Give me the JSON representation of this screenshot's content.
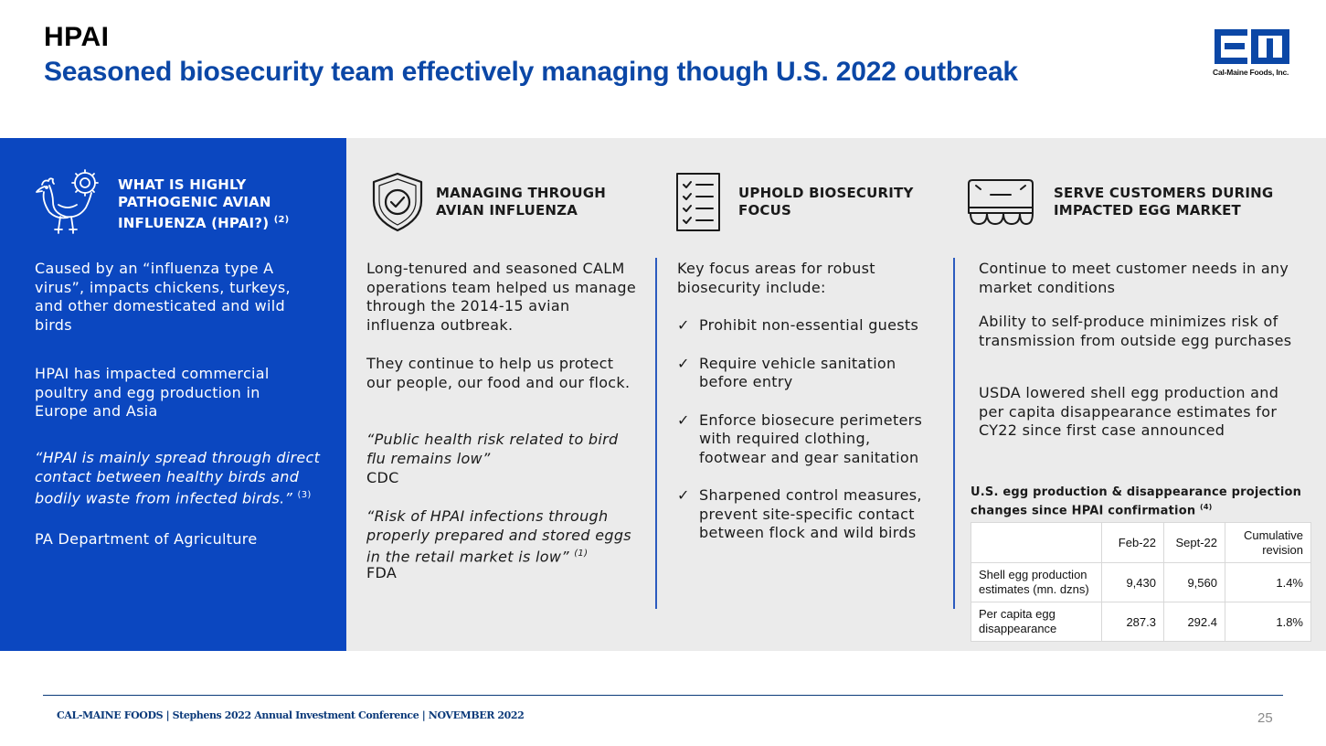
{
  "header": {
    "title": "HPAI",
    "subtitle": "Seasoned biosecurity team effectively managing though U.S. 2022 outbreak",
    "logo_text": "Cal-Maine Foods, Inc."
  },
  "col1": {
    "icon": "chicken-virus-icon",
    "heading": "WHAT IS HIGHLY PATHOGENIC AVIAN INFLUENZA (HPAI?)",
    "heading_note": "(2)",
    "p1": "Caused by an “influenza type A virus”, impacts chickens, turkeys, and other domesticated and wild birds",
    "p2": "HPAI has impacted commercial poultry and egg production in Europe and Asia",
    "quote": "“HPAI is mainly spread through direct contact between healthy birds and bodily waste from infected birds.”",
    "quote_note": "(3)",
    "source": "PA Department of Agriculture"
  },
  "col2": {
    "icon": "shield-check-icon",
    "heading": "MANAGING THROUGH AVIAN INFLUENZA",
    "p1": "Long-tenured and seasoned CALM operations team helped us manage through the 2014-15 avian influenza outbreak.",
    "p2": "They continue to help us protect our people, our food and our flock.",
    "quote1": "“Public health risk related to bird flu remains low”",
    "source1": "CDC",
    "quote2": "“Risk of HPAI infections through properly prepared and stored eggs in the retail market is low”",
    "quote2_note": "(1)",
    "source2": "FDA"
  },
  "col3": {
    "icon": "checklist-icon",
    "heading": "UPHOLD BIOSECURITY FOCUS",
    "intro": "Key focus areas for robust biosecurity include:",
    "check_glyph": "✓",
    "items": [
      "Prohibit non-essential guests",
      "Require vehicle sanitation before entry",
      "Enforce biosecure perimeters with required clothing, footwear and gear sanitation",
      "Sharpened control measures, prevent site-specific contact between flock and wild birds"
    ]
  },
  "col4": {
    "icon": "egg-carton-icon",
    "heading": "SERVE CUSTOMERS DURING IMPACTED EGG MARKET",
    "p1": "Continue to meet customer needs in any market conditions",
    "p2": "Ability to self-produce minimizes risk of transmission from outside egg purchases",
    "p3": "USDA lowered shell egg production and per capita disappearance estimates for CY22 since first case announced",
    "table_title": "U.S. egg production & disappearance projection changes since HPAI confirmation",
    "table_note": "(4)",
    "table": {
      "headers": [
        "",
        "Feb-22",
        "Sept-22",
        "Cumulative revision"
      ],
      "rows": [
        [
          "Shell egg production estimates (mn. dzns)",
          "9,430",
          "9,560",
          "1.4%"
        ],
        [
          "Per capita egg disappearance",
          "287.3",
          "292.4",
          "1.8%"
        ]
      ]
    }
  },
  "footer": {
    "text": "CAL-MAINE FOODS | Stephens 2022 Annual Investment Conference | NOVEMBER 2022",
    "page": "25"
  },
  "colors": {
    "brand_blue": "#0b47c0",
    "title_blue": "#0b47a6",
    "panel_grey": "#ebebeb"
  }
}
